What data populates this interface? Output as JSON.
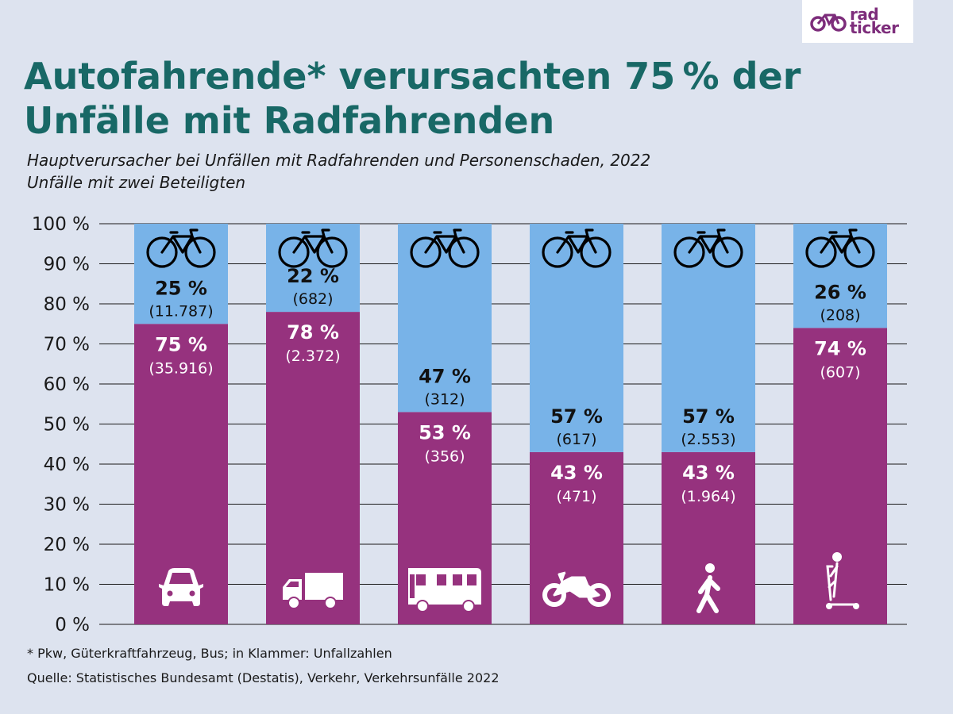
{
  "brand": {
    "line1": "rad",
    "line2": "ticker",
    "color": "#7d2d7b"
  },
  "title": "Autofahrende* verursachten 75 % der Unfälle mit Radfahrenden",
  "subtitle": {
    "line1": "Hauptverursacher bei Unfällen mit Radfahrenden und Personenschaden, 2022",
    "line2": "Unfälle mit zwei Beteiligten"
  },
  "footnote": "* Pkw, Güterkraftfahrzeug, Bus;  in Klammer: Unfallzahlen",
  "source": "Quelle: Statistisches Bundesamt (Destatis), Verkehr, Verkehrsunfälle 2022",
  "colors": {
    "cyclist": "#78b3e8",
    "other": "#96327e",
    "title": "#186866",
    "background": "#dde3ef"
  },
  "chart_data": {
    "type": "bar",
    "stacked": true,
    "ylim": [
      0,
      100
    ],
    "yticks": [
      "0 %",
      "10 %",
      "20 %",
      "30 %",
      "40 %",
      "50 %",
      "60 %",
      "70 %",
      "80 %",
      "90 %",
      "100 %"
    ],
    "grid": true,
    "categories": [
      {
        "icon": "car-icon"
      },
      {
        "icon": "truck-icon"
      },
      {
        "icon": "bus-icon"
      },
      {
        "icon": "motorcycle-icon"
      },
      {
        "icon": "pedestrian-icon"
      },
      {
        "icon": "scooter-icon"
      }
    ],
    "series": [
      {
        "key": "other",
        "icon_set": "categories",
        "color": "#96327e",
        "values": [
          75,
          78,
          53,
          43,
          43,
          74
        ],
        "labels": [
          "75 %",
          "78 %",
          "53 %",
          "43 %",
          "43 %",
          "74 %"
        ],
        "counts": [
          "(35.916)",
          "(2.372)",
          "(356)",
          "(471)",
          "(1.964)",
          "(607)"
        ]
      },
      {
        "key": "cyclist",
        "icon": "bicycle-icon",
        "color": "#78b3e8",
        "values": [
          25,
          22,
          47,
          57,
          57,
          26
        ],
        "labels": [
          "25 %",
          "22 %",
          "47 %",
          "57 %",
          "57 %",
          "26 %"
        ],
        "counts": [
          "(11.787)",
          "(682)",
          "(312)",
          "(617)",
          "(2.553)",
          "(208)"
        ]
      }
    ]
  }
}
